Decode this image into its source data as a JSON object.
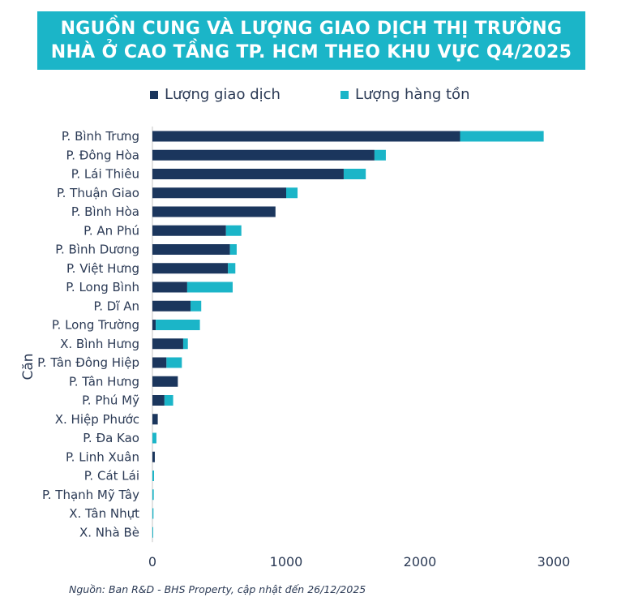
{
  "title_line1": "NGUỒN CUNG VÀ LƯỢNG GIAO DỊCH THỊ TRƯỜNG",
  "title_line2": "NHÀ Ở CAO TẦNG TP. HCM THEO KHU VỰC Q4/2025",
  "source": "Nguồn: Ban R&D - BHS Property, cập nhật đến 26/12/2025",
  "chart_data": {
    "type": "bar",
    "orientation": "horizontal",
    "stacked": true,
    "ylabel": "Căn",
    "xlabel": "",
    "xlim": [
      0,
      3000
    ],
    "xticks": [
      0,
      1000,
      2000,
      3000
    ],
    "grid": false,
    "legend_position": "top",
    "categories": [
      "P. Bình Trưng",
      "P. Đông Hòa",
      "P. Lái Thiêu",
      "P. Thuận Giao",
      "P. Bình Hòa",
      "P. An Phú",
      "P. Bình Dương",
      "P. Việt Hưng",
      "P. Long Bình",
      "P. Dĩ An",
      "P. Long Trường",
      "X. Bình Hưng",
      "P. Tân Đông Hiệp",
      "P. Tân Hưng",
      "P. Phú Mỹ",
      "X. Hiệp Phước",
      "P. Đa Kao",
      "P. Linh Xuân",
      "P. Cát Lái",
      "P. Thạnh Mỹ Tây",
      "X. Tân Nhựt",
      "X. Nhà Bè"
    ],
    "series": [
      {
        "name": "Lượng giao dịch",
        "color": "#1b365d",
        "values": [
          2300,
          1660,
          1430,
          1000,
          920,
          550,
          580,
          565,
          260,
          285,
          25,
          230,
          105,
          190,
          90,
          40,
          0,
          18,
          0,
          0,
          0,
          0
        ]
      },
      {
        "name": "Lượng hàng tồn",
        "color": "#1bb5c8",
        "values": [
          625,
          85,
          165,
          85,
          0,
          115,
          50,
          55,
          340,
          80,
          330,
          35,
          115,
          0,
          65,
          0,
          30,
          0,
          12,
          10,
          8,
          5
        ]
      }
    ]
  }
}
